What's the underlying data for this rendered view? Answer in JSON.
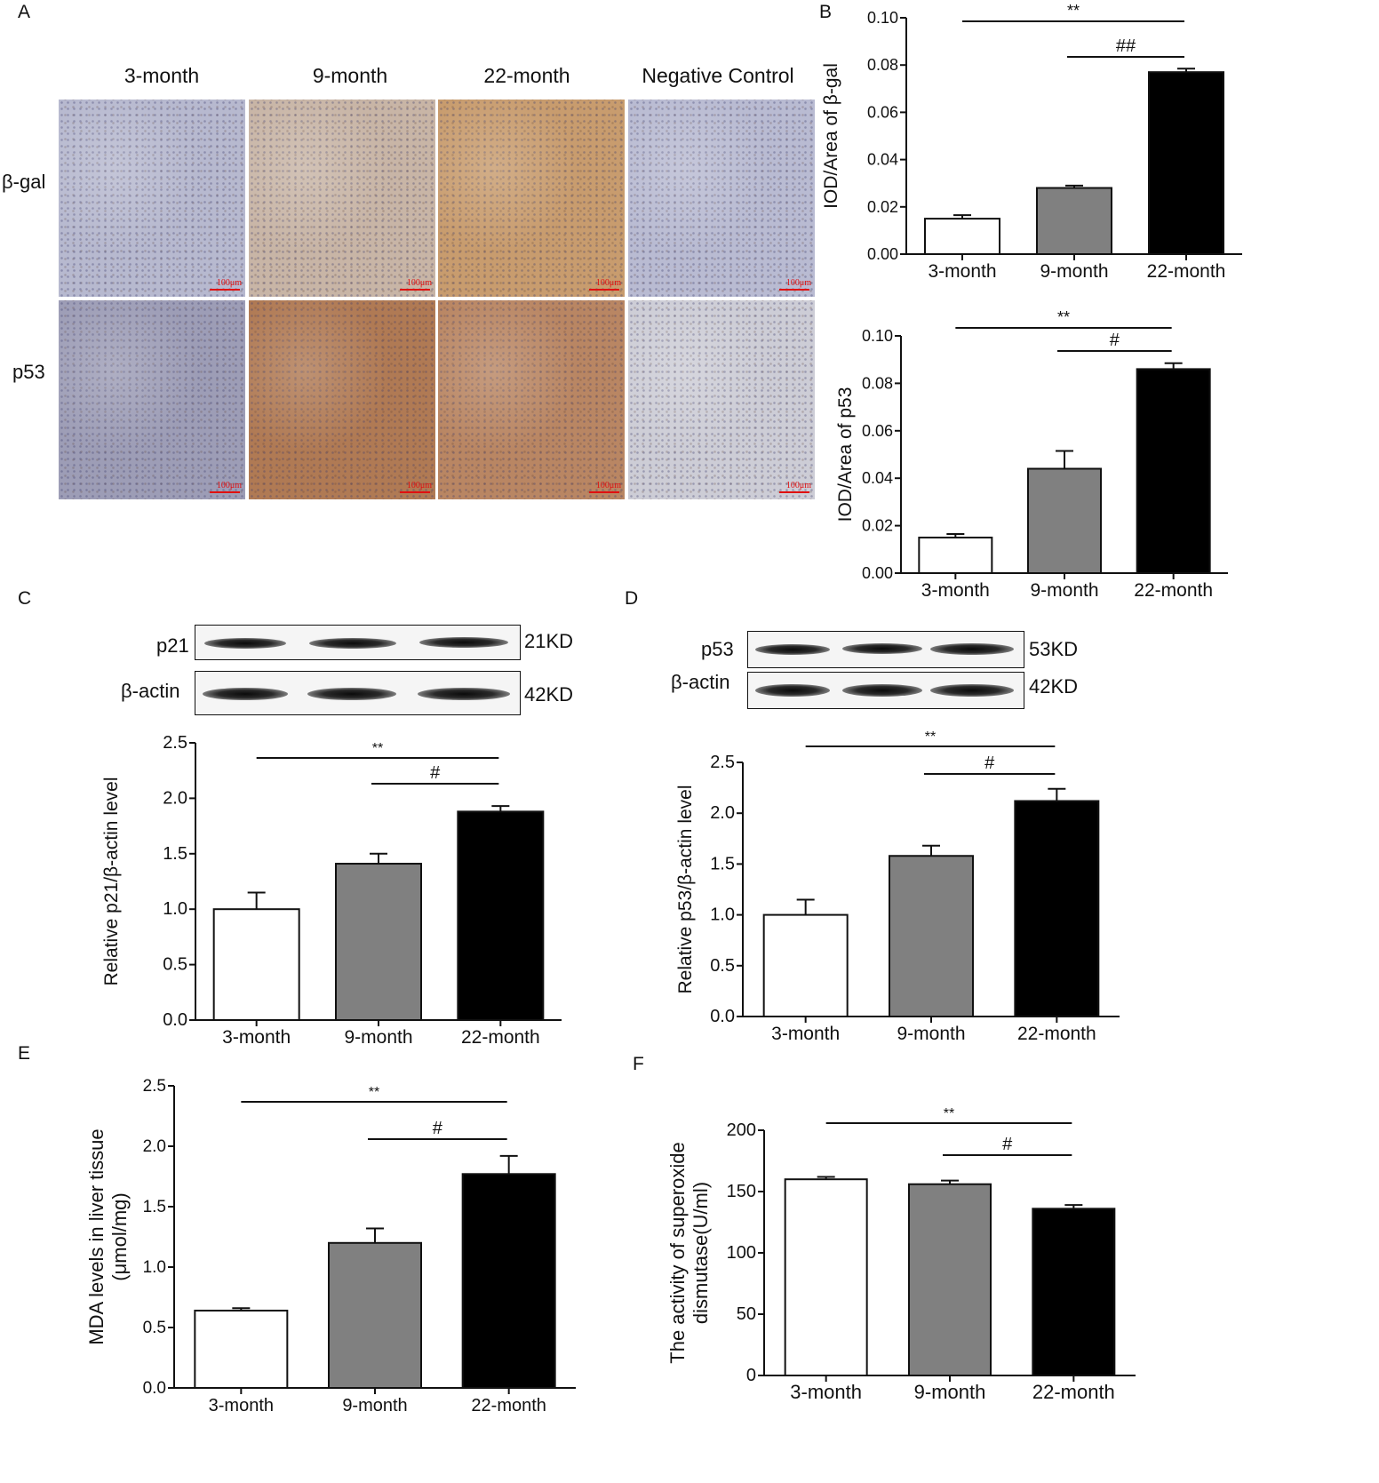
{
  "panels": {
    "A": "A",
    "B": "B",
    "C": "C",
    "D": "D",
    "E": "E",
    "F": "F"
  },
  "histology": {
    "columns": [
      "3-month",
      "9-month",
      "22-month",
      "Negative Control"
    ],
    "rows": [
      "β-gal",
      "p53"
    ],
    "scale_label": "100μm",
    "tile_colors": {
      "β-gal": [
        "#b7b9cf",
        "#c8b5a6",
        "#c89c6e",
        "#b9bbd2"
      ],
      "p53": [
        "#9d9db6",
        "#b07a54",
        "#b98663",
        "#cdcdd6"
      ]
    }
  },
  "blots": {
    "C": {
      "bands": [
        {
          "name": "p21",
          "kd": "21KD"
        },
        {
          "name": "β-actin",
          "kd": "42KD"
        }
      ]
    },
    "D": {
      "bands": [
        {
          "name": "p53",
          "kd": "53KD"
        },
        {
          "name": "β-actin",
          "kd": "42KD"
        }
      ]
    }
  },
  "chart_data": [
    {
      "id": "B1",
      "type": "bar",
      "categories": [
        "3-month",
        "9-month",
        "22-month"
      ],
      "values": [
        0.015,
        0.028,
        0.077
      ],
      "errors": [
        0.0015,
        0.001,
        0.0015
      ],
      "colors": [
        "#ffffff",
        "#808080",
        "#000000"
      ],
      "ylabel": "IOD/Area of β-gal",
      "ylim": [
        0,
        0.1
      ],
      "yticks": [
        "0.00",
        "0.02",
        "0.04",
        "0.06",
        "0.08",
        "0.10"
      ],
      "annotations": [
        {
          "text": "**",
          "from": "3-month",
          "to": "22-month"
        },
        {
          "text": "##",
          "from": "9-month",
          "to": "22-month"
        }
      ]
    },
    {
      "id": "B2",
      "type": "bar",
      "categories": [
        "3-month",
        "9-month",
        "22-month"
      ],
      "values": [
        0.015,
        0.044,
        0.086
      ],
      "errors": [
        0.0015,
        0.0075,
        0.0025
      ],
      "colors": [
        "#ffffff",
        "#808080",
        "#000000"
      ],
      "ylabel": "IOD/Area of p53",
      "ylim": [
        0,
        0.1
      ],
      "yticks": [
        "0.00",
        "0.02",
        "0.04",
        "0.06",
        "0.08",
        "0.10"
      ],
      "annotations": [
        {
          "text": "**",
          "from": "3-month",
          "to": "22-month"
        },
        {
          "text": "#",
          "from": "9-month",
          "to": "22-month"
        }
      ]
    },
    {
      "id": "C",
      "type": "bar",
      "categories": [
        "3-month",
        "9-month",
        "22-month"
      ],
      "values": [
        1.0,
        1.41,
        1.88
      ],
      "errors": [
        0.15,
        0.09,
        0.05
      ],
      "colors": [
        "#ffffff",
        "#808080",
        "#000000"
      ],
      "ylabel": "Relative p21/β-actin level",
      "ylim": [
        0,
        2.5
      ],
      "yticks": [
        "0.0",
        "0.5",
        "1.0",
        "1.5",
        "2.0",
        "2.5"
      ],
      "annotations": [
        {
          "text": "**",
          "from": "3-month",
          "to": "22-month"
        },
        {
          "text": "#",
          "from": "9-month",
          "to": "22-month"
        }
      ]
    },
    {
      "id": "D",
      "type": "bar",
      "categories": [
        "3-month",
        "9-month",
        "22-month"
      ],
      "values": [
        1.0,
        1.58,
        2.12
      ],
      "errors": [
        0.15,
        0.1,
        0.12
      ],
      "colors": [
        "#ffffff",
        "#808080",
        "#000000"
      ],
      "ylabel": "Relative p53/β-actin level",
      "ylim": [
        0,
        2.5
      ],
      "yticks": [
        "0.0",
        "0.5",
        "1.0",
        "1.5",
        "2.0",
        "2.5"
      ],
      "annotations": [
        {
          "text": "**",
          "from": "3-month",
          "to": "22-month"
        },
        {
          "text": "#",
          "from": "9-month",
          "to": "22-month"
        }
      ]
    },
    {
      "id": "E",
      "type": "bar",
      "categories": [
        "3-month",
        "9-month",
        "22-month"
      ],
      "values": [
        0.64,
        1.2,
        1.77
      ],
      "errors": [
        0.02,
        0.12,
        0.15
      ],
      "colors": [
        "#ffffff",
        "#808080",
        "#000000"
      ],
      "ylabel": "MDA levels in liver tissue",
      "ylabel2": "(μmol/mg)",
      "ylim": [
        0,
        2.5
      ],
      "yticks": [
        "0.0",
        "0.5",
        "1.0",
        "1.5",
        "2.0",
        "2.5"
      ],
      "annotations": [
        {
          "text": "**",
          "from": "3-month",
          "to": "22-month"
        },
        {
          "text": "#",
          "from": "9-month",
          "to": "22-month"
        }
      ]
    },
    {
      "id": "F",
      "type": "bar",
      "categories": [
        "3-month",
        "9-month",
        "22-month"
      ],
      "values": [
        160,
        156,
        136
      ],
      "errors": [
        2,
        3,
        3
      ],
      "colors": [
        "#ffffff",
        "#808080",
        "#000000"
      ],
      "ylabel": "The activity of superoxide",
      "ylabel2": "dismutase(U/ml)",
      "ylim": [
        0,
        200
      ],
      "yticks": [
        "0",
        "50",
        "100",
        "150",
        "200"
      ],
      "annotations": [
        {
          "text": "**",
          "from": "3-month",
          "to": "22-month"
        },
        {
          "text": "#",
          "from": "9-month",
          "to": "22-month"
        }
      ]
    }
  ]
}
